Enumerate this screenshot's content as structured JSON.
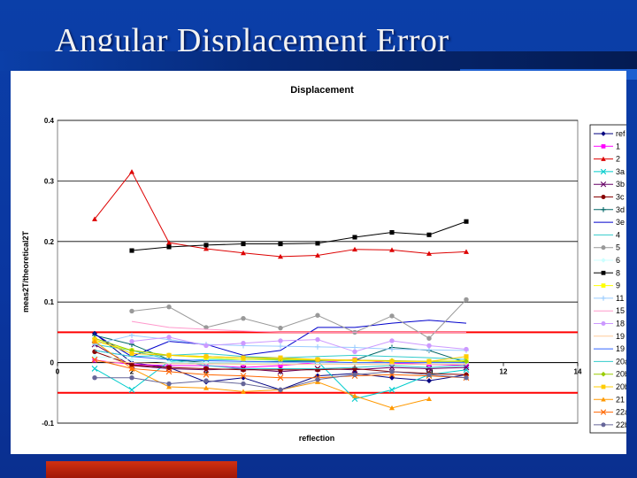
{
  "slide": {
    "title": "Angular Displacement Error"
  },
  "chart_data": {
    "type": "line",
    "title": "Displacement",
    "xlabel": "reflection",
    "ylabel": "meas2T/theoretical2T",
    "xlim": [
      0,
      14
    ],
    "ylim": [
      -0.1,
      0.4
    ],
    "x_ticks": [
      0,
      2,
      4,
      6,
      8,
      10,
      12,
      14
    ],
    "y_ticks": [
      -0.1,
      0,
      0.1,
      0.2,
      0.3,
      0.4
    ],
    "grid": "horizontal",
    "legend_position": "right",
    "reference_lines": [
      {
        "y": 0.05,
        "color": "#ff0000"
      },
      {
        "y": -0.05,
        "color": "#ff0000"
      }
    ],
    "series": [
      {
        "name": "ref",
        "color": "#000080",
        "marker": "diamond",
        "x": [
          1,
          2,
          3,
          4,
          5,
          6,
          7,
          8,
          9,
          10,
          11
        ],
        "y": [
          0.048,
          0,
          -0.008,
          -0.032,
          -0.025,
          -0.045,
          -0.022,
          -0.018,
          -0.025,
          -0.03,
          -0.02
        ]
      },
      {
        "name": "1",
        "color": "#ff00ff",
        "marker": "square",
        "x": [
          1,
          2,
          3,
          4,
          5,
          6,
          7,
          8,
          9,
          10,
          11
        ],
        "y": [
          0.004,
          -0.003,
          -0.005,
          -0.005,
          -0.008,
          -0.005,
          0.0,
          0.005,
          -0.001,
          -0.003,
          -0.005
        ]
      },
      {
        "name": "2",
        "color": "#dd0000",
        "marker": "triangle",
        "x": [
          1,
          2,
          3,
          4,
          5,
          6,
          7,
          8,
          9,
          10,
          11
        ],
        "y": [
          0.237,
          0.315,
          0.198,
          0.188,
          0.181,
          0.175,
          0.177,
          0.187,
          0.186,
          0.18,
          0.183
        ]
      },
      {
        "name": "3a",
        "color": "#00cccc",
        "marker": "x",
        "x": [
          1,
          2,
          3,
          4,
          5,
          6,
          7,
          8,
          9,
          10,
          11
        ],
        "y": [
          -0.01,
          -0.045,
          0.002,
          0.005,
          0.005,
          0.004,
          0.002,
          -0.06,
          -0.045,
          -0.02,
          -0.012
        ]
      },
      {
        "name": "3b",
        "color": "#660066",
        "marker": "x",
        "x": [
          1,
          2,
          3,
          4,
          5,
          6,
          7,
          8,
          9,
          10,
          11
        ],
        "y": [
          0.03,
          -0.005,
          -0.01,
          -0.012,
          -0.01,
          -0.015,
          -0.01,
          -0.012,
          -0.008,
          -0.01,
          -0.008
        ]
      },
      {
        "name": "3c",
        "color": "#880000",
        "marker": "circle",
        "x": [
          1,
          2,
          3,
          4,
          5,
          6,
          7,
          8,
          9,
          10,
          11
        ],
        "y": [
          0.018,
          -0.004,
          -0.008,
          -0.01,
          -0.012,
          -0.012,
          -0.012,
          -0.01,
          -0.015,
          -0.018,
          -0.02
        ]
      },
      {
        "name": "3d",
        "color": "#006666",
        "marker": "plus",
        "x": [
          1,
          2,
          3,
          4,
          5,
          6,
          7,
          8,
          9,
          10,
          11
        ],
        "y": [
          0.045,
          0.03,
          0.005,
          0.0,
          0.0,
          0.002,
          0.003,
          0.004,
          0.025,
          0.02,
          0.0
        ]
      },
      {
        "name": "3e",
        "color": "#0000cc",
        "marker": "none",
        "x": [
          1,
          2,
          3,
          4,
          5,
          6,
          7,
          8,
          9,
          10,
          11
        ],
        "y": [
          0.047,
          0.01,
          0.035,
          0.03,
          0.012,
          0.02,
          0.058,
          0.058,
          0.065,
          0.07,
          0.065
        ]
      },
      {
        "name": "4",
        "color": "#33cccc",
        "marker": "none",
        "x": [
          1,
          2,
          3,
          4,
          5,
          6,
          7,
          8,
          9,
          10,
          11
        ],
        "y": [
          0.03,
          0.02,
          0.005,
          -0.005,
          -0.01,
          -0.01,
          -0.01,
          -0.008,
          -0.005,
          -0.008,
          -0.005
        ]
      },
      {
        "name": "5",
        "color": "#999999",
        "marker": "circle",
        "x": [
          2,
          3,
          4,
          5,
          6,
          7,
          8,
          9,
          10,
          11
        ],
        "y": [
          0.085,
          0.092,
          0.058,
          0.073,
          0.057,
          0.078,
          0.05,
          0.077,
          0.04,
          0.104
        ]
      },
      {
        "name": "6",
        "color": "#ccffff",
        "marker": "diamond",
        "x": [
          1,
          2,
          3,
          4,
          5,
          6,
          7,
          8,
          9,
          10,
          11
        ],
        "y": [
          0.01,
          0.005,
          0.0,
          0.0,
          0.0,
          0.0,
          0.0,
          0.0,
          0.0,
          0.0,
          0.0
        ]
      },
      {
        "name": "8",
        "color": "#000000",
        "marker": "square",
        "x": [
          2,
          3,
          4,
          5,
          6,
          7,
          8,
          9,
          10,
          11
        ],
        "y": [
          0.185,
          0.191,
          0.194,
          0.196,
          0.196,
          0.197,
          0.207,
          0.215,
          0.211,
          0.233
        ]
      },
      {
        "name": "9",
        "color": "#ffff00",
        "marker": "square",
        "x": [
          1,
          2,
          3,
          4,
          5,
          6,
          7,
          8,
          9,
          10,
          11
        ],
        "y": [
          0.035,
          0.02,
          0.012,
          0.008,
          0.005,
          0.005,
          0.004,
          0.003,
          0.002,
          0.002,
          0.003
        ]
      },
      {
        "name": "11",
        "color": "#99ccff",
        "marker": "plus",
        "x": [
          1,
          2,
          3,
          4,
          5,
          6,
          7,
          8,
          9,
          10,
          11
        ],
        "y": [
          0.03,
          0.045,
          0.038,
          0.03,
          0.028,
          0.027,
          0.026,
          0.025,
          0.022,
          0.021,
          0.02
        ]
      },
      {
        "name": "15",
        "color": "#ff99cc",
        "marker": "none",
        "x": [
          2,
          3,
          4,
          5,
          6,
          7,
          8,
          9,
          10,
          11
        ],
        "y": [
          0.068,
          0.058,
          0.055,
          0.052,
          0.05,
          0.05,
          0.05,
          0.05,
          0.05,
          0.05
        ]
      },
      {
        "name": "18",
        "color": "#cc99ff",
        "marker": "circle",
        "x": [
          2,
          3,
          4,
          5,
          6,
          7,
          8,
          9,
          10,
          11
        ],
        "y": [
          0.035,
          0.042,
          0.028,
          0.032,
          0.036,
          0.038,
          0.018,
          0.036,
          0.028,
          0.022
        ]
      },
      {
        "name": "19",
        "color": "#ffcc99",
        "marker": "none",
        "x": [
          1,
          2,
          3,
          4,
          5,
          6,
          7,
          8,
          9,
          10,
          11
        ],
        "y": [
          0.002,
          0.0,
          -0.002,
          -0.002,
          -0.003,
          -0.003,
          -0.003,
          -0.003,
          -0.003,
          -0.003,
          -0.003
        ]
      },
      {
        "name": "19",
        "color": "#3366ff",
        "marker": "none",
        "x": [
          1,
          2,
          3,
          4,
          5,
          6,
          7,
          8,
          9,
          10,
          11
        ],
        "y": [
          0.02,
          0.01,
          0.005,
          0.003,
          0.002,
          0.001,
          0.001,
          0.0,
          0.0,
          0.0,
          0.0
        ]
      },
      {
        "name": "20a",
        "color": "#33cccc",
        "marker": "none",
        "x": [
          1,
          2,
          3,
          4,
          5,
          6,
          7,
          8,
          9,
          10,
          11
        ],
        "y": [
          0.02,
          0.01,
          0.012,
          0.015,
          0.01,
          0.008,
          0.01,
          0.012,
          0.01,
          0.008,
          0.005
        ]
      },
      {
        "name": "20b",
        "color": "#99cc00",
        "marker": "diamond",
        "x": [
          1,
          2,
          3,
          4,
          5,
          6,
          7,
          8,
          9,
          10,
          11
        ],
        "y": [
          0.04,
          0.02,
          0.012,
          0.01,
          0.008,
          0.006,
          0.005,
          0.004,
          0.003,
          0.002,
          0.002
        ]
      },
      {
        "name": "20b",
        "color": "#ffcc00",
        "marker": "square",
        "x": [
          1,
          2,
          3,
          4,
          5,
          6,
          7,
          8,
          9,
          10,
          11
        ],
        "y": [
          0.038,
          0.015,
          0.012,
          0.01,
          0.008,
          0.008,
          0.005,
          0.004,
          0.002,
          0.002,
          0.01
        ]
      },
      {
        "name": "21",
        "color": "#ff9900",
        "marker": "triangle",
        "x": [
          1,
          2,
          3,
          4,
          5,
          6,
          7,
          8,
          9,
          10
        ],
        "y": [
          0.035,
          -0.01,
          -0.04,
          -0.042,
          -0.048,
          -0.045,
          -0.032,
          -0.055,
          -0.075,
          -0.06
        ]
      },
      {
        "name": "22a",
        "color": "#ff6600",
        "marker": "x",
        "x": [
          1,
          2,
          3,
          4,
          5,
          6,
          7,
          8,
          9,
          10,
          11
        ],
        "y": [
          0.005,
          -0.01,
          -0.015,
          -0.02,
          -0.022,
          -0.025,
          -0.025,
          -0.022,
          -0.02,
          -0.022,
          -0.025
        ]
      },
      {
        "name": "22b",
        "color": "#666699",
        "marker": "circle",
        "x": [
          1,
          2,
          3,
          4,
          5,
          6,
          7,
          8,
          9,
          10,
          11
        ],
        "y": [
          -0.025,
          -0.025,
          -0.035,
          -0.03,
          -0.035,
          -0.045,
          -0.028,
          -0.02,
          -0.015,
          -0.02,
          -0.025
        ]
      }
    ]
  }
}
